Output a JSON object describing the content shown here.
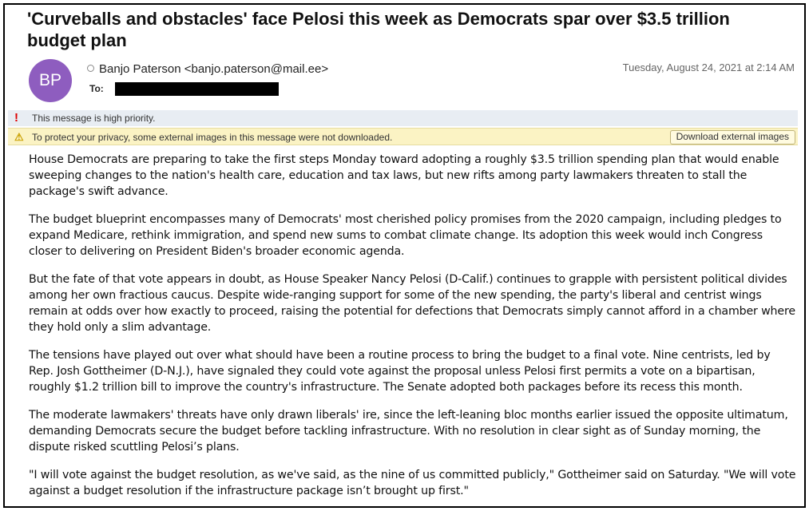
{
  "header": {
    "title": "'Curveballs and obstacles' face Pelosi this week as Democrats spar over $3.5 trillion budget plan"
  },
  "sender": {
    "initials": "BP",
    "name": "Banjo Paterson <banjo.paterson@mail.ee>",
    "to_label": "To:",
    "date": "Tuesday, August 24, 2021 at 2:14 AM"
  },
  "banners": {
    "priority": "This message is high priority.",
    "privacy": "To protect your privacy, some external images in this message were not downloaded.",
    "button": "Download external images"
  },
  "body": {
    "paragraphs": [
      "House Democrats are preparing to take the first steps Monday toward adopting a roughly $3.5 trillion spending plan that would enable sweeping changes to the nation's health care, education and tax laws, but new rifts among party lawmakers threaten to stall the package's swift advance.",
      "The budget blueprint encompasses many of Democrats' most cherished policy promises from the 2020 campaign, including pledges to expand Medicare, rethink immigration, and spend new sums to combat climate change. Its adoption this week would inch Congress closer to delivering on President Biden's broader economic agenda.",
      "But the fate of that vote appears in doubt, as House Speaker Nancy Pelosi (D-Calif.) continues to grapple with persistent political divides among her own fractious caucus. Despite wide-ranging support for some of the new spending, the party's liberal and centrist wings remain at odds over how exactly to proceed, raising the potential for defections that Democrats simply cannot afford in a chamber where they hold only a slim advantage.",
      "The tensions have played out over what should have been a routine process to bring the budget to a final vote. Nine centrists, led by Rep. Josh Gottheimer (D-N.J.), have signaled they could vote against the proposal unless Pelosi first permits a vote on a bipartisan, roughly $1.2 trillion bill to improve the country's infrastructure. The Senate adopted both packages before its recess this month.",
      "The moderate lawmakers' threats have only drawn liberals' ire, since the left-leaning bloc months earlier issued the opposite ultimatum, demanding Democrats secure the budget before tackling infrastructure. With no resolution in clear sight as of Sunday morning, the dispute risked scuttling Pelosi’s plans.",
      "\"I will vote against the budget resolution, as we've said, as the nine of us committed publicly,\" Gottheimer said on Saturday. \"We will vote against a budget resolution if the infrastructure package isn’t brought up first.\""
    ]
  }
}
